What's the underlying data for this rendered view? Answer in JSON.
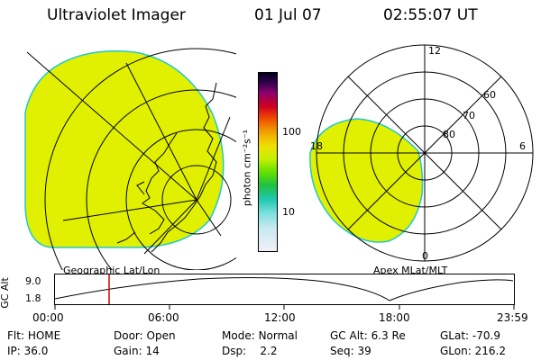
{
  "header": {
    "instrument": "Ultraviolet Imager",
    "date": "01 Jul 07",
    "time": "02:55:07 UT"
  },
  "left_panel": {
    "label": "Geographic Lat/Lon"
  },
  "right_panel": {
    "label": "Apex MLat/MLT",
    "mlt_labels": {
      "top": "12",
      "left": "18",
      "right": "6",
      "bottom": "0"
    },
    "lat_labels": [
      "60",
      "70",
      "80"
    ]
  },
  "colorbar": {
    "unit": "photon cm⁻²s⁻¹",
    "ticks": [
      "100",
      "10"
    ]
  },
  "altitude_plot": {
    "ylabel": "GC Alt",
    "yticks": [
      "9.0",
      "1.8"
    ],
    "xticks": [
      "00:00",
      "06:00",
      "12:00",
      "18:00",
      "23:59"
    ]
  },
  "footer": {
    "row1": [
      {
        "key": "Flt:",
        "value": "HOME"
      },
      {
        "key": "Door:",
        "value": "Open"
      },
      {
        "key": "Mode:",
        "value": "Normal"
      },
      {
        "key": "GC Alt:",
        "value": "6.3 Re"
      },
      {
        "key": "GLat:",
        "value": "-70.9"
      }
    ],
    "row2": [
      {
        "key": "IP:",
        "value": "36.0"
      },
      {
        "key": "Gain:",
        "value": "14"
      },
      {
        "key": "Dsp:",
        "value": "2.2"
      },
      {
        "key": "Seq:",
        "value": "39"
      },
      {
        "key": "GLon:",
        "value": "216.2"
      }
    ]
  },
  "colors": {
    "aurora_fill": "#e0f000",
    "aurora_edge": "#20c8d0",
    "grid": "#000000",
    "marker": "#d00000"
  }
}
